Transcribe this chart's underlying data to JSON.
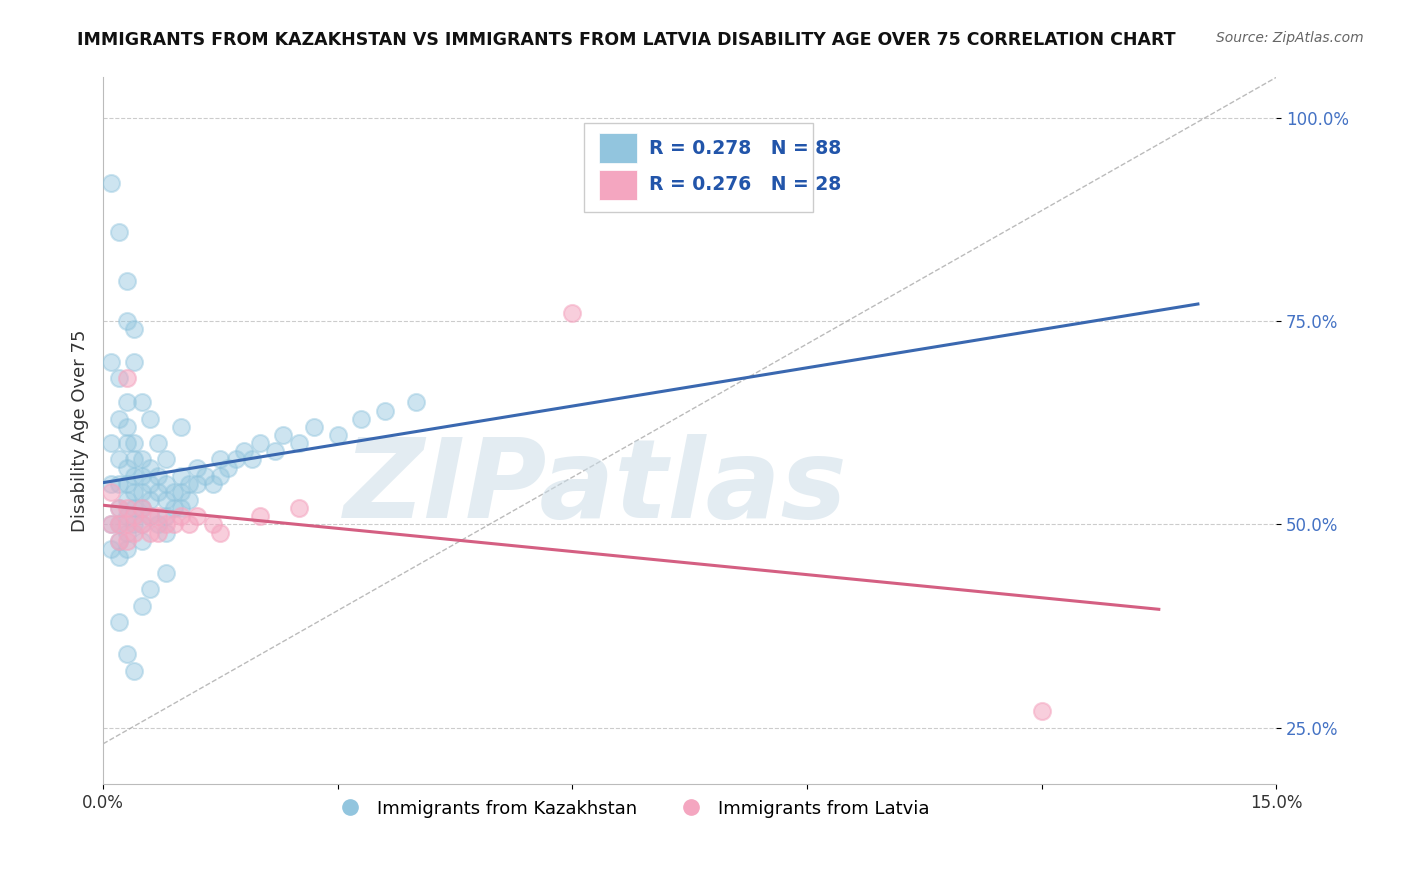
{
  "title": "IMMIGRANTS FROM KAZAKHSTAN VS IMMIGRANTS FROM LATVIA DISABILITY AGE OVER 75 CORRELATION CHART",
  "source": "Source: ZipAtlas.com",
  "ylabel": "Disability Age Over 75",
  "xlim": [
    0.0,
    0.15
  ],
  "ylim": [
    0.18,
    1.05
  ],
  "ytick_vals": [
    0.25,
    0.5,
    0.75,
    1.0
  ],
  "ytick_labels": [
    "25.0%",
    "50.0%",
    "75.0%",
    "100.0%"
  ],
  "legend_entries": [
    "Immigrants from Kazakhstan",
    "Immigrants from Latvia"
  ],
  "R_kaz": 0.278,
  "N_kaz": 88,
  "R_lat": 0.276,
  "N_lat": 28,
  "scatter_color_kaz": "#92c5de",
  "scatter_color_lat": "#f4a6c0",
  "line_color_kaz": "#3a68b0",
  "line_color_lat": "#d45f82",
  "diag_line_color": "#aaaaaa",
  "grid_color": "#cccccc",
  "watermark": "ZIPatlas",
  "watermark_color_left": "#b8d4e8",
  "watermark_color_right": "#c8a0b8",
  "kaz_x": [
    0.001,
    0.001,
    0.001,
    0.001,
    0.001,
    0.002,
    0.002,
    0.002,
    0.002,
    0.002,
    0.002,
    0.002,
    0.002,
    0.003,
    0.003,
    0.003,
    0.003,
    0.003,
    0.003,
    0.003,
    0.003,
    0.003,
    0.004,
    0.004,
    0.004,
    0.004,
    0.004,
    0.004,
    0.005,
    0.005,
    0.005,
    0.005,
    0.005,
    0.005,
    0.006,
    0.006,
    0.006,
    0.006,
    0.007,
    0.007,
    0.007,
    0.008,
    0.008,
    0.008,
    0.008,
    0.009,
    0.009,
    0.01,
    0.01,
    0.01,
    0.011,
    0.011,
    0.012,
    0.012,
    0.013,
    0.014,
    0.015,
    0.015,
    0.016,
    0.017,
    0.018,
    0.019,
    0.02,
    0.022,
    0.023,
    0.025,
    0.027,
    0.03,
    0.033,
    0.036,
    0.04,
    0.003,
    0.004,
    0.005,
    0.006,
    0.007,
    0.008,
    0.01,
    0.001,
    0.002,
    0.003,
    0.004,
    0.002,
    0.003,
    0.004,
    0.005,
    0.006,
    0.008
  ],
  "kaz_y": [
    0.7,
    0.6,
    0.55,
    0.5,
    0.47,
    0.68,
    0.63,
    0.58,
    0.55,
    0.52,
    0.5,
    0.48,
    0.46,
    0.65,
    0.62,
    0.6,
    0.57,
    0.55,
    0.53,
    0.51,
    0.49,
    0.47,
    0.6,
    0.58,
    0.56,
    0.54,
    0.52,
    0.5,
    0.58,
    0.56,
    0.54,
    0.52,
    0.5,
    0.48,
    0.57,
    0.55,
    0.53,
    0.51,
    0.56,
    0.54,
    0.5,
    0.55,
    0.53,
    0.51,
    0.49,
    0.54,
    0.52,
    0.56,
    0.54,
    0.52,
    0.55,
    0.53,
    0.57,
    0.55,
    0.56,
    0.55,
    0.58,
    0.56,
    0.57,
    0.58,
    0.59,
    0.58,
    0.6,
    0.59,
    0.61,
    0.6,
    0.62,
    0.61,
    0.63,
    0.64,
    0.65,
    0.75,
    0.7,
    0.65,
    0.63,
    0.6,
    0.58,
    0.62,
    0.92,
    0.86,
    0.8,
    0.74,
    0.38,
    0.34,
    0.32,
    0.4,
    0.42,
    0.44
  ],
  "lat_x": [
    0.001,
    0.001,
    0.002,
    0.002,
    0.002,
    0.003,
    0.003,
    0.003,
    0.004,
    0.004,
    0.005,
    0.005,
    0.006,
    0.006,
    0.007,
    0.007,
    0.008,
    0.009,
    0.01,
    0.011,
    0.012,
    0.014,
    0.015,
    0.02,
    0.025,
    0.06,
    0.12,
    0.003
  ],
  "lat_y": [
    0.54,
    0.5,
    0.52,
    0.5,
    0.48,
    0.52,
    0.5,
    0.48,
    0.51,
    0.49,
    0.52,
    0.5,
    0.51,
    0.49,
    0.51,
    0.49,
    0.5,
    0.5,
    0.51,
    0.5,
    0.51,
    0.5,
    0.49,
    0.51,
    0.52,
    0.76,
    0.27,
    0.68
  ]
}
